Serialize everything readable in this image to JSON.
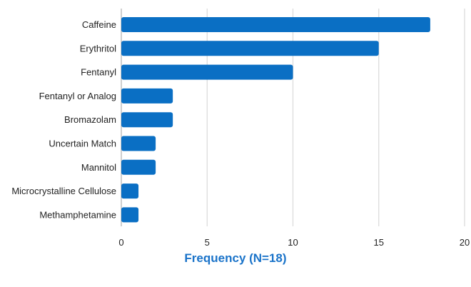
{
  "chart_data": {
    "type": "bar",
    "orientation": "horizontal",
    "categories": [
      "Caffeine",
      "Erythritol",
      "Fentanyl",
      "Fentanyl or Analog",
      "Bromazolam",
      "Uncertain Match",
      "Mannitol",
      "Microcrystalline Cellulose",
      "Methamphetamine"
    ],
    "values": [
      18,
      15,
      10,
      3,
      3,
      2,
      2,
      1,
      1
    ],
    "xlim": [
      0,
      20
    ],
    "xticks": [
      0,
      5,
      10,
      15,
      20
    ],
    "xlabel": "Frequency (N=18)",
    "grid": "vertical",
    "colors": {
      "bar": "#0a6fc4",
      "grid": "#d9d9d9",
      "axis": "#bfbfbf",
      "xlabel": "#1a73c9"
    }
  }
}
